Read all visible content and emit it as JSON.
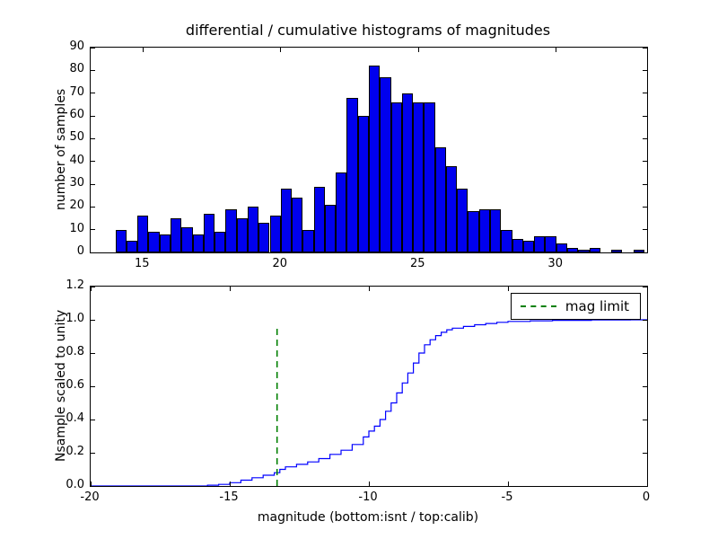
{
  "figure": {
    "title": "differential / cumulative histograms of magnitudes",
    "xlabel": "magnitude (bottom:isnt / top:calib)"
  },
  "chart_data": [
    {
      "type": "bar",
      "subplot": "top",
      "title": "differential / cumulative histograms of magnitudes",
      "ylabel": "number of samples",
      "bar_color": "#0000ee",
      "edge_color": "#000000",
      "bin_start": 14.0,
      "bin_width": 0.4,
      "counts": [
        10,
        5,
        16,
        9,
        8,
        15,
        11,
        8,
        17,
        9,
        19,
        15,
        20,
        13,
        16,
        28,
        24,
        10,
        29,
        21,
        35,
        68,
        60,
        82,
        77,
        66,
        70,
        66,
        66,
        46,
        38,
        28,
        18,
        19,
        19,
        10,
        6,
        5,
        7,
        7,
        4,
        2,
        1,
        2,
        0,
        1,
        0,
        1
      ],
      "xlim": [
        13.1,
        33.3
      ],
      "ylim": [
        0,
        90
      ],
      "xticks": [
        15,
        20,
        25,
        30
      ],
      "yticks": [
        0,
        10,
        20,
        30,
        40,
        50,
        60,
        70,
        80,
        90
      ],
      "grid": false
    },
    {
      "type": "line",
      "subplot": "bottom",
      "ylabel": "Nsample scaled to unity",
      "xlabel": "magnitude (bottom:isnt / top:calib)",
      "line_color": "#0000ff",
      "step_points": [
        [
          -20,
          0
        ],
        [
          -15.8,
          0.005
        ],
        [
          -15.4,
          0.01
        ],
        [
          -15.0,
          0.02
        ],
        [
          -14.6,
          0.035
        ],
        [
          -14.2,
          0.05
        ],
        [
          -13.8,
          0.065
        ],
        [
          -13.4,
          0.08
        ],
        [
          -13.2,
          0.1
        ],
        [
          -13.0,
          0.115
        ],
        [
          -12.6,
          0.13
        ],
        [
          -12.2,
          0.145
        ],
        [
          -11.8,
          0.165
        ],
        [
          -11.4,
          0.19
        ],
        [
          -11.0,
          0.215
        ],
        [
          -10.6,
          0.25
        ],
        [
          -10.2,
          0.295
        ],
        [
          -10.0,
          0.33
        ],
        [
          -9.8,
          0.36
        ],
        [
          -9.6,
          0.4
        ],
        [
          -9.4,
          0.45
        ],
        [
          -9.2,
          0.5
        ],
        [
          -9.0,
          0.56
        ],
        [
          -8.8,
          0.62
        ],
        [
          -8.6,
          0.68
        ],
        [
          -8.4,
          0.74
        ],
        [
          -8.2,
          0.8
        ],
        [
          -8.0,
          0.85
        ],
        [
          -7.8,
          0.88
        ],
        [
          -7.6,
          0.905
        ],
        [
          -7.4,
          0.925
        ],
        [
          -7.2,
          0.94
        ],
        [
          -7.0,
          0.95
        ],
        [
          -6.6,
          0.96
        ],
        [
          -6.2,
          0.97
        ],
        [
          -5.8,
          0.978
        ],
        [
          -5.4,
          0.985
        ],
        [
          -5.0,
          0.99
        ],
        [
          -4.2,
          0.994
        ],
        [
          -3.4,
          0.997
        ],
        [
          -2.0,
          0.999
        ],
        [
          -0.6,
          1.0
        ],
        [
          0,
          1.0
        ]
      ],
      "mag_limit": {
        "x": -13.3,
        "y_bottom": 0.0,
        "y_top": 0.97,
        "color": "#008000",
        "label": "mag limit"
      },
      "xlim": [
        -20,
        0
      ],
      "ylim": [
        0,
        1.2
      ],
      "xticks": [
        -20,
        -15,
        -10,
        -5,
        0
      ],
      "yticks": [
        0.0,
        0.2,
        0.4,
        0.6,
        0.8,
        1.0,
        1.2
      ],
      "legend": {
        "label": "mag limit",
        "position": "upper right"
      },
      "grid": false
    }
  ]
}
